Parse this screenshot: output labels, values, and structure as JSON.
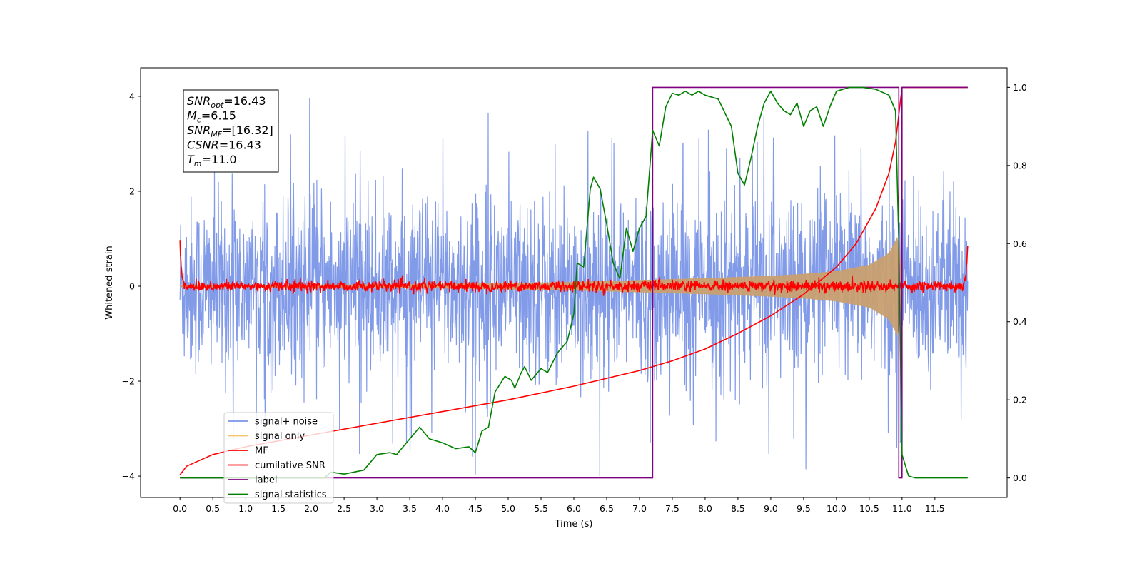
{
  "chart_data": {
    "type": "line",
    "xlabel": "Time (s)",
    "ylabel_left": "Whitened strain",
    "ylabel_right": "",
    "xlim": [
      -0.6,
      12.6
    ],
    "ylim_left": [
      -4.45,
      4.6
    ],
    "ylim_right": [
      -0.05,
      1.05
    ],
    "x_ticks": [
      0.0,
      0.5,
      1.0,
      1.5,
      2.0,
      2.5,
      3.0,
      3.5,
      4.0,
      4.5,
      5.0,
      5.5,
      6.0,
      6.5,
      7.0,
      7.5,
      8.0,
      8.5,
      9.0,
      9.5,
      10.0,
      10.5,
      11.0,
      11.5
    ],
    "x_tick_labels": [
      "0.0",
      "0.5",
      "1.0",
      "1.5",
      "2.0",
      "2.5",
      "3.0",
      "3.5",
      "4.0",
      "4.5",
      "5.0",
      "5.5",
      "6.0",
      "6.5",
      "7.0",
      "7.5",
      "8.0",
      "8.5",
      "9.0",
      "9.5",
      "10.0",
      "10.5",
      "11.0",
      "11.5"
    ],
    "y_left_ticks": [
      -4,
      -2,
      0,
      2,
      4
    ],
    "y_left_tick_labels": [
      "−4",
      "−2",
      "0",
      "2",
      "4"
    ],
    "y_right_ticks": [
      0.0,
      0.2,
      0.4,
      0.6,
      0.8,
      1.0
    ],
    "y_right_tick_labels": [
      "0.0",
      "0.2",
      "0.4",
      "0.6",
      "0.8",
      "1.0"
    ],
    "legend_position": "lower-left",
    "legend": [
      {
        "label": "signal+ noise",
        "color": "#7b96e8"
      },
      {
        "label": "signal only",
        "color": "#f5c56b"
      },
      {
        "label": "MF",
        "color": "#ff0000"
      },
      {
        "label": "cumilative SNR",
        "color": "#ff0000"
      },
      {
        "label": "label",
        "color": "#800080"
      },
      {
        "label": "signal statistics",
        "color": "#008000"
      }
    ],
    "annotation": [
      {
        "base": "SNR",
        "sub": "opt",
        "rest": "=16.43"
      },
      {
        "base": "M",
        "sub": "c",
        "rest": "=6.15"
      },
      {
        "base": "SNR",
        "sub": "MF",
        "rest": "=[16.32]"
      },
      {
        "base": "CSNR",
        "sub": "",
        "rest": "=16.43"
      },
      {
        "base": "T",
        "sub": "m",
        "rest": "=11.0"
      }
    ],
    "series": [
      {
        "name": "signal+ noise",
        "axis": "left",
        "kind": "noise",
        "x_range": [
          0.0,
          12.0
        ],
        "typical_amplitude": 1.5,
        "max": 4.1,
        "min": -4.0
      },
      {
        "name": "signal only",
        "axis": "left",
        "kind": "chirp_envelope",
        "x": [
          0.0,
          1.0,
          2.0,
          3.0,
          4.0,
          5.0,
          6.0,
          7.0,
          8.0,
          9.0,
          9.5,
          10.0,
          10.5,
          10.8,
          10.95,
          11.0
        ],
        "envelope": [
          0.02,
          0.02,
          0.03,
          0.04,
          0.05,
          0.07,
          0.09,
          0.13,
          0.17,
          0.22,
          0.26,
          0.32,
          0.45,
          0.7,
          1.1,
          0.0
        ]
      },
      {
        "name": "MF",
        "axis": "left",
        "kind": "mf",
        "x_range": [
          0.0,
          12.0
        ],
        "edge_value": 1.0,
        "noise_amplitude": 0.06
      },
      {
        "name": "cumilative SNR",
        "axis": "right",
        "x": [
          0.0,
          0.1,
          0.5,
          1.0,
          2.0,
          3.0,
          4.0,
          5.0,
          6.0,
          7.0,
          7.5,
          8.0,
          8.5,
          9.0,
          9.5,
          10.0,
          10.3,
          10.6,
          10.8,
          10.9,
          10.95,
          11.0,
          12.0
        ],
        "y": [
          0.008,
          0.03,
          0.06,
          0.08,
          0.11,
          0.14,
          0.17,
          0.2,
          0.235,
          0.275,
          0.3,
          0.33,
          0.37,
          0.415,
          0.47,
          0.54,
          0.6,
          0.69,
          0.78,
          0.86,
          0.93,
          1.0,
          1.0
        ]
      },
      {
        "name": "label",
        "axis": "right",
        "x": [
          0.0,
          7.2,
          7.2,
          10.95,
          10.95,
          11.0,
          11.0,
          12.0
        ],
        "y": [
          0.0,
          0.0,
          1.0,
          1.0,
          0.0,
          0.0,
          1.0,
          1.0
        ]
      },
      {
        "name": "signal statistics",
        "axis": "right",
        "x": [
          0.0,
          2.2,
          2.3,
          2.5,
          2.8,
          3.0,
          3.2,
          3.3,
          3.5,
          3.65,
          3.75,
          3.8,
          4.0,
          4.2,
          4.4,
          4.5,
          4.6,
          4.7,
          4.8,
          4.95,
          5.05,
          5.1,
          5.2,
          5.25,
          5.35,
          5.5,
          5.6,
          5.75,
          5.9,
          6.0,
          6.05,
          6.15,
          6.25,
          6.3,
          6.4,
          6.5,
          6.6,
          6.7,
          6.8,
          6.9,
          7.0,
          7.1,
          7.2,
          7.3,
          7.4,
          7.5,
          7.6,
          7.7,
          7.8,
          7.9,
          8.0,
          8.2,
          8.4,
          8.5,
          8.6,
          8.7,
          8.8,
          8.9,
          9.0,
          9.1,
          9.2,
          9.3,
          9.4,
          9.5,
          9.6,
          9.7,
          9.8,
          9.9,
          10.0,
          10.2,
          10.4,
          10.6,
          10.8,
          10.9,
          10.95,
          11.0,
          11.1,
          11.2,
          12.0
        ],
        "y": [
          0.0,
          0.0,
          0.015,
          0.01,
          0.02,
          0.06,
          0.065,
          0.06,
          0.1,
          0.13,
          0.11,
          0.1,
          0.09,
          0.075,
          0.08,
          0.065,
          0.12,
          0.13,
          0.22,
          0.26,
          0.25,
          0.23,
          0.27,
          0.285,
          0.25,
          0.28,
          0.27,
          0.32,
          0.35,
          0.42,
          0.55,
          0.54,
          0.74,
          0.77,
          0.74,
          0.65,
          0.55,
          0.51,
          0.64,
          0.58,
          0.64,
          0.67,
          0.89,
          0.85,
          0.95,
          0.985,
          0.98,
          0.99,
          0.98,
          0.99,
          0.98,
          0.97,
          0.9,
          0.78,
          0.75,
          0.82,
          0.9,
          0.96,
          0.99,
          0.96,
          0.94,
          0.93,
          0.96,
          0.9,
          0.94,
          0.95,
          0.9,
          0.95,
          0.99,
          1.0,
          1.0,
          0.995,
          0.98,
          0.94,
          0.6,
          0.06,
          0.005,
          0.0,
          0.0
        ]
      }
    ]
  }
}
